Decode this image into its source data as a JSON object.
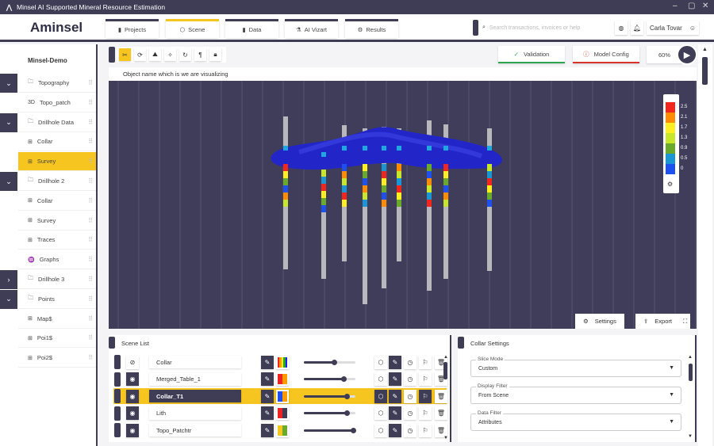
{
  "window": {
    "title": "Minsel AI Supported Mineral Resource Estimation"
  },
  "header": {
    "brand": "Aminsel",
    "nav": [
      {
        "label": "Projects",
        "icon": "bar-chart-icon"
      },
      {
        "label": "Scene",
        "icon": "cube-icon",
        "active": true
      },
      {
        "label": "Data",
        "icon": "bar-chart-icon"
      },
      {
        "label": "AI Vizart",
        "icon": "flask-icon"
      },
      {
        "label": "Results",
        "icon": "gear-icon"
      }
    ],
    "search_placeholder": "Search transactions, invoices or help",
    "user": "Carla Tovar"
  },
  "sidebar": {
    "title": "Minsel-Demo",
    "items": [
      {
        "label": "Topography",
        "icon": "folder-icon",
        "chevron": "down"
      },
      {
        "label": "Topo_patch",
        "icon": "3d-icon"
      },
      {
        "label": "Drillhole Data",
        "icon": "folder-icon",
        "chevron": "down"
      },
      {
        "label": "Collar",
        "icon": "grid-icon"
      },
      {
        "label": "Survey",
        "icon": "grid-icon",
        "selected": true
      },
      {
        "label": "Drillhole 2",
        "icon": "folder-icon",
        "chevron": "down"
      },
      {
        "label": "Collar",
        "icon": "grid-icon"
      },
      {
        "label": "Survey",
        "icon": "grid-icon"
      },
      {
        "label": "Traces",
        "icon": "grid-icon"
      },
      {
        "label": "Graphs",
        "icon": "waveform-icon"
      },
      {
        "label": "Drillhole 3",
        "icon": "folder-icon",
        "chevron": "right"
      },
      {
        "label": "Points",
        "icon": "folder-icon",
        "chevron": "down"
      },
      {
        "label": "Map$",
        "icon": "grid-icon"
      },
      {
        "label": "Poi1$",
        "icon": "grid-icon"
      },
      {
        "label": "Poi2$",
        "icon": "grid-icon"
      }
    ]
  },
  "toolbar": {
    "validation": "Validation",
    "model_config": "Model Config",
    "zoom": "60%",
    "validation_color": "#2ea44f",
    "model_config_color": "#d9342b"
  },
  "viewport": {
    "object_name": "Object name which is we are visualizing",
    "legend": {
      "values": [
        "2.5",
        "2.1",
        "1.7",
        "1.3",
        "0.9",
        "0.5",
        "0"
      ],
      "colors": [
        "#f2261c",
        "#ff8c00",
        "#ffee22",
        "#c8e62a",
        "#6aaa2a",
        "#1a96d4",
        "#1e50f0"
      ]
    },
    "settings": "Settings",
    "export": "Export"
  },
  "scene_list": {
    "title": "Scene List",
    "rows": [
      {
        "name": "Collar",
        "visible": false,
        "colors": [
          "#e22",
          "#f90",
          "#ee2",
          "#2a2",
          "#22e"
        ],
        "opacity": 0.6
      },
      {
        "name": "Merged_Table_1",
        "visible": true,
        "colors": [
          "#e22",
          "#f90"
        ],
        "opacity": 0.78
      },
      {
        "name": "Collar_T1",
        "visible": true,
        "selected": true,
        "colors": [
          "#1e50f0",
          "#f90"
        ],
        "opacity": 0.85
      },
      {
        "name": "Lith",
        "visible": true,
        "colors": [
          "#e22",
          "#3f3d56"
        ],
        "opacity": 0.85
      },
      {
        "name": "Topo_Patchtr",
        "visible": true,
        "colors": [
          "#f7c520",
          "#6aaa2a"
        ],
        "opacity": 0.97
      }
    ]
  },
  "collar_settings": {
    "title": "Collar Settings",
    "fields": [
      {
        "label": "Slice Mode",
        "value": "Custom"
      },
      {
        "label": "Display Filter",
        "value": "From Scene"
      },
      {
        "label": "Data Filter",
        "value": "Attributes"
      }
    ]
  }
}
